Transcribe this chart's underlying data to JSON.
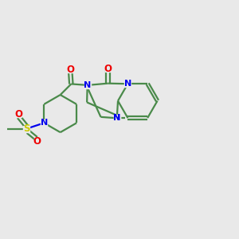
{
  "background_color": "#e9e9e9",
  "bond_color": "#4a8a4a",
  "nitrogen_color": "#0000ee",
  "oxygen_color": "#ee0000",
  "sulfur_color": "#cccc00",
  "line_width": 1.6,
  "figsize": [
    3.0,
    3.0
  ],
  "dpi": 100,
  "xlim": [
    0,
    12
  ],
  "ylim": [
    0,
    12
  ]
}
